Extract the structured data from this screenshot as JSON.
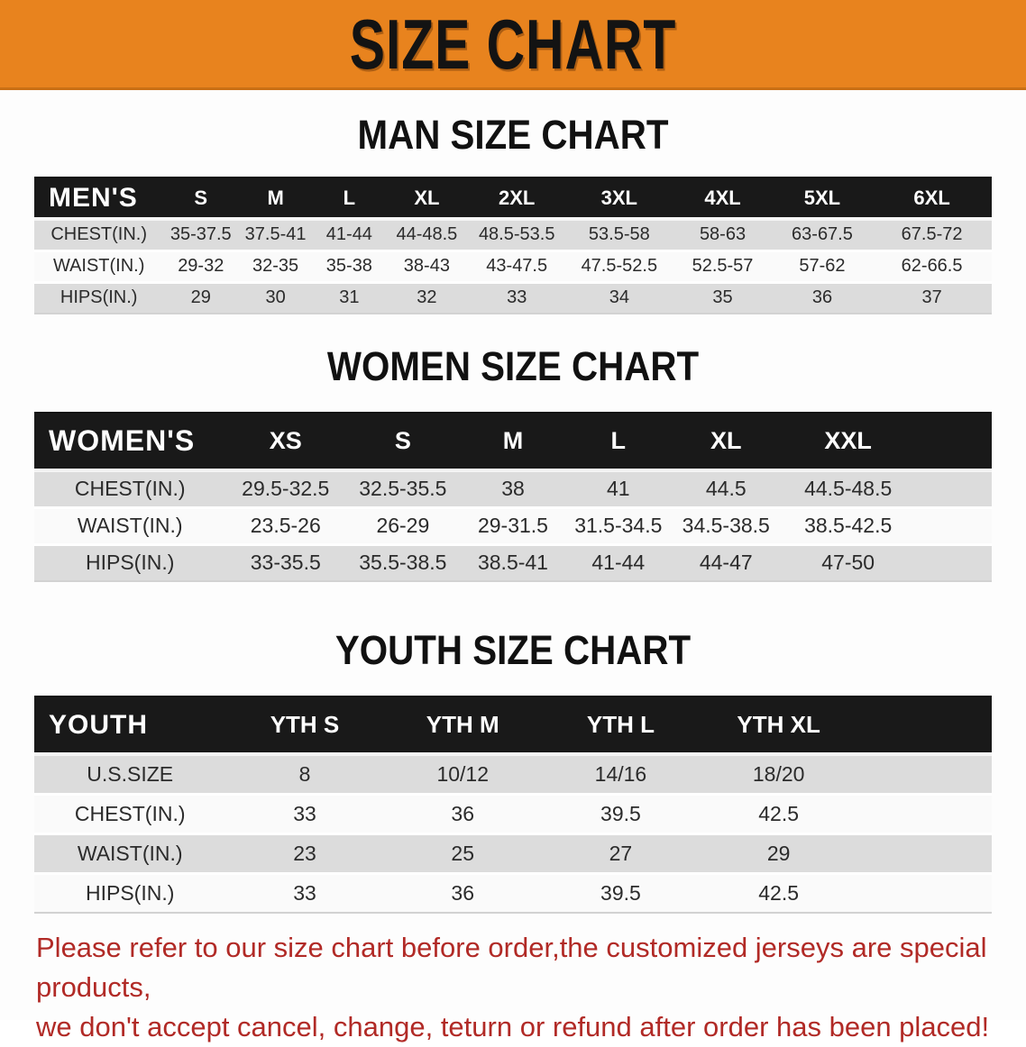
{
  "banner": {
    "title": "SIZE CHART",
    "bg_color": "#E8831E",
    "text_color": "#131313"
  },
  "sections": [
    {
      "heading": "MAN SIZE CHART",
      "table": {
        "group_label": "MEN'S",
        "columns": [
          "S",
          "M",
          "L",
          "XL",
          "2XL",
          "3XL",
          "4XL",
          "5XL",
          "6XL"
        ],
        "rows": [
          {
            "label": "CHEST(IN.)",
            "values": [
              "35-37.5",
              "37.5-41",
              "41-44",
              "44-48.5",
              "48.5-53.5",
              "53.5-58",
              "58-63",
              "63-67.5",
              "67.5-72"
            ]
          },
          {
            "label": "WAIST(IN.)",
            "values": [
              "29-32",
              "32-35",
              "35-38",
              "38-43",
              "43-47.5",
              "47.5-52.5",
              "52.5-57",
              "57-62",
              "62-66.5"
            ]
          },
          {
            "label": "HIPS(IN.)",
            "values": [
              "29",
              "30",
              "31",
              "32",
              "33",
              "34",
              "35",
              "36",
              "37"
            ]
          }
        ]
      }
    },
    {
      "heading": "WOMEN SIZE CHART",
      "table": {
        "group_label": "WOMEN'S",
        "columns": [
          "XS",
          "S",
          "M",
          "L",
          "XL",
          "XXL"
        ],
        "rows": [
          {
            "label": "CHEST(IN.)",
            "values": [
              "29.5-32.5",
              "32.5-35.5",
              "38",
              "41",
              "44.5",
              "44.5-48.5"
            ]
          },
          {
            "label": "WAIST(IN.)",
            "values": [
              "23.5-26",
              "26-29",
              "29-31.5",
              "31.5-34.5",
              "34.5-38.5",
              "38.5-42.5"
            ]
          },
          {
            "label": "HIPS(IN.)",
            "values": [
              "33-35.5",
              "35.5-38.5",
              "38.5-41",
              "41-44",
              "44-47",
              "47-50"
            ]
          }
        ]
      }
    },
    {
      "heading": "YOUTH SIZE CHART",
      "table": {
        "group_label": "YOUTH",
        "columns": [
          "YTH S",
          "YTH M",
          "YTH L",
          "YTH XL"
        ],
        "rows": [
          {
            "label": "U.S.SIZE",
            "values": [
              "8",
              "10/12",
              "14/16",
              "18/20"
            ]
          },
          {
            "label": "CHEST(IN.)",
            "values": [
              "33",
              "36",
              "39.5",
              "42.5"
            ]
          },
          {
            "label": "WAIST(IN.)",
            "values": [
              "23",
              "25",
              "27",
              "29"
            ]
          },
          {
            "label": "HIPS(IN.)",
            "values": [
              "33",
              "36",
              "39.5",
              "42.5"
            ]
          }
        ]
      }
    }
  ],
  "disclaimer": {
    "line1": "Please refer to our size chart before order,the customized jerseys are special products,",
    "line2": "we don't accept cancel, change, teturn or refund after order has been placed!",
    "color": "#B12A26"
  },
  "colors": {
    "banner_orange": "#E8831E",
    "table_header_black": "#191919",
    "row_gray": "#DCDCDC",
    "row_white": "#FAFAFA",
    "disclaimer_red": "#B12A26"
  }
}
